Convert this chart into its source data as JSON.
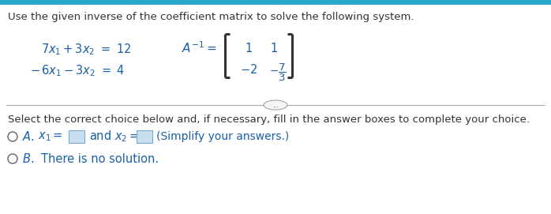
{
  "bg_color": "#ffffff",
  "top_bar_color": "#29a8cc",
  "title_text": "Use the given inverse of the coefficient matrix to solve the following system.",
  "title_color": "#333333",
  "title_fontsize": 9.5,
  "eq_color": "#1a5fa8",
  "eq_fontsize": 10.5,
  "divider_color": "#aaaaaa",
  "select_text": "Select the correct choice below and, if necessary, fill in the answer boxes to complete your choice.",
  "select_color": "#333333",
  "select_fontsize": 9.5,
  "choiceA_color": "#1a5fa8",
  "choiceB_color": "#1a5fa8",
  "box_fill": "#c8dff0",
  "box_edge": "#7aaad0",
  "bracket_color": "#333333"
}
